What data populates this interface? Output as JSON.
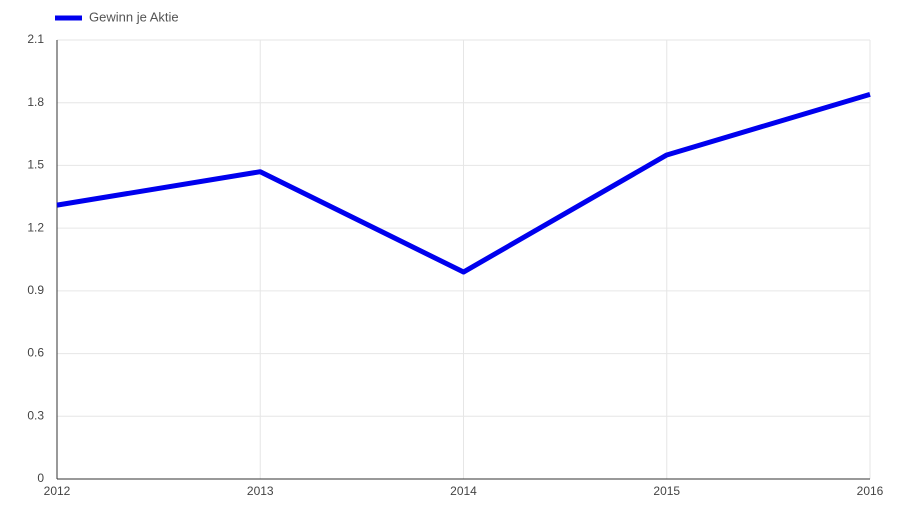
{
  "chart_data": {
    "type": "line",
    "x": [
      2012,
      2013,
      2014,
      2015,
      2016
    ],
    "series": [
      {
        "name": "Gewinn je Aktie",
        "color": "#0000ee",
        "values": [
          1.31,
          1.47,
          0.99,
          1.55,
          1.84
        ]
      }
    ],
    "xlim": [
      2012,
      2016
    ],
    "xticks": [
      2012,
      2013,
      2014,
      2015,
      2016
    ],
    "ylim": [
      0,
      2.1
    ],
    "yticks": [
      0,
      0.3,
      0.6,
      0.9,
      1.2,
      1.5,
      1.8,
      2.1
    ],
    "grid": true,
    "legend": "top-left"
  }
}
